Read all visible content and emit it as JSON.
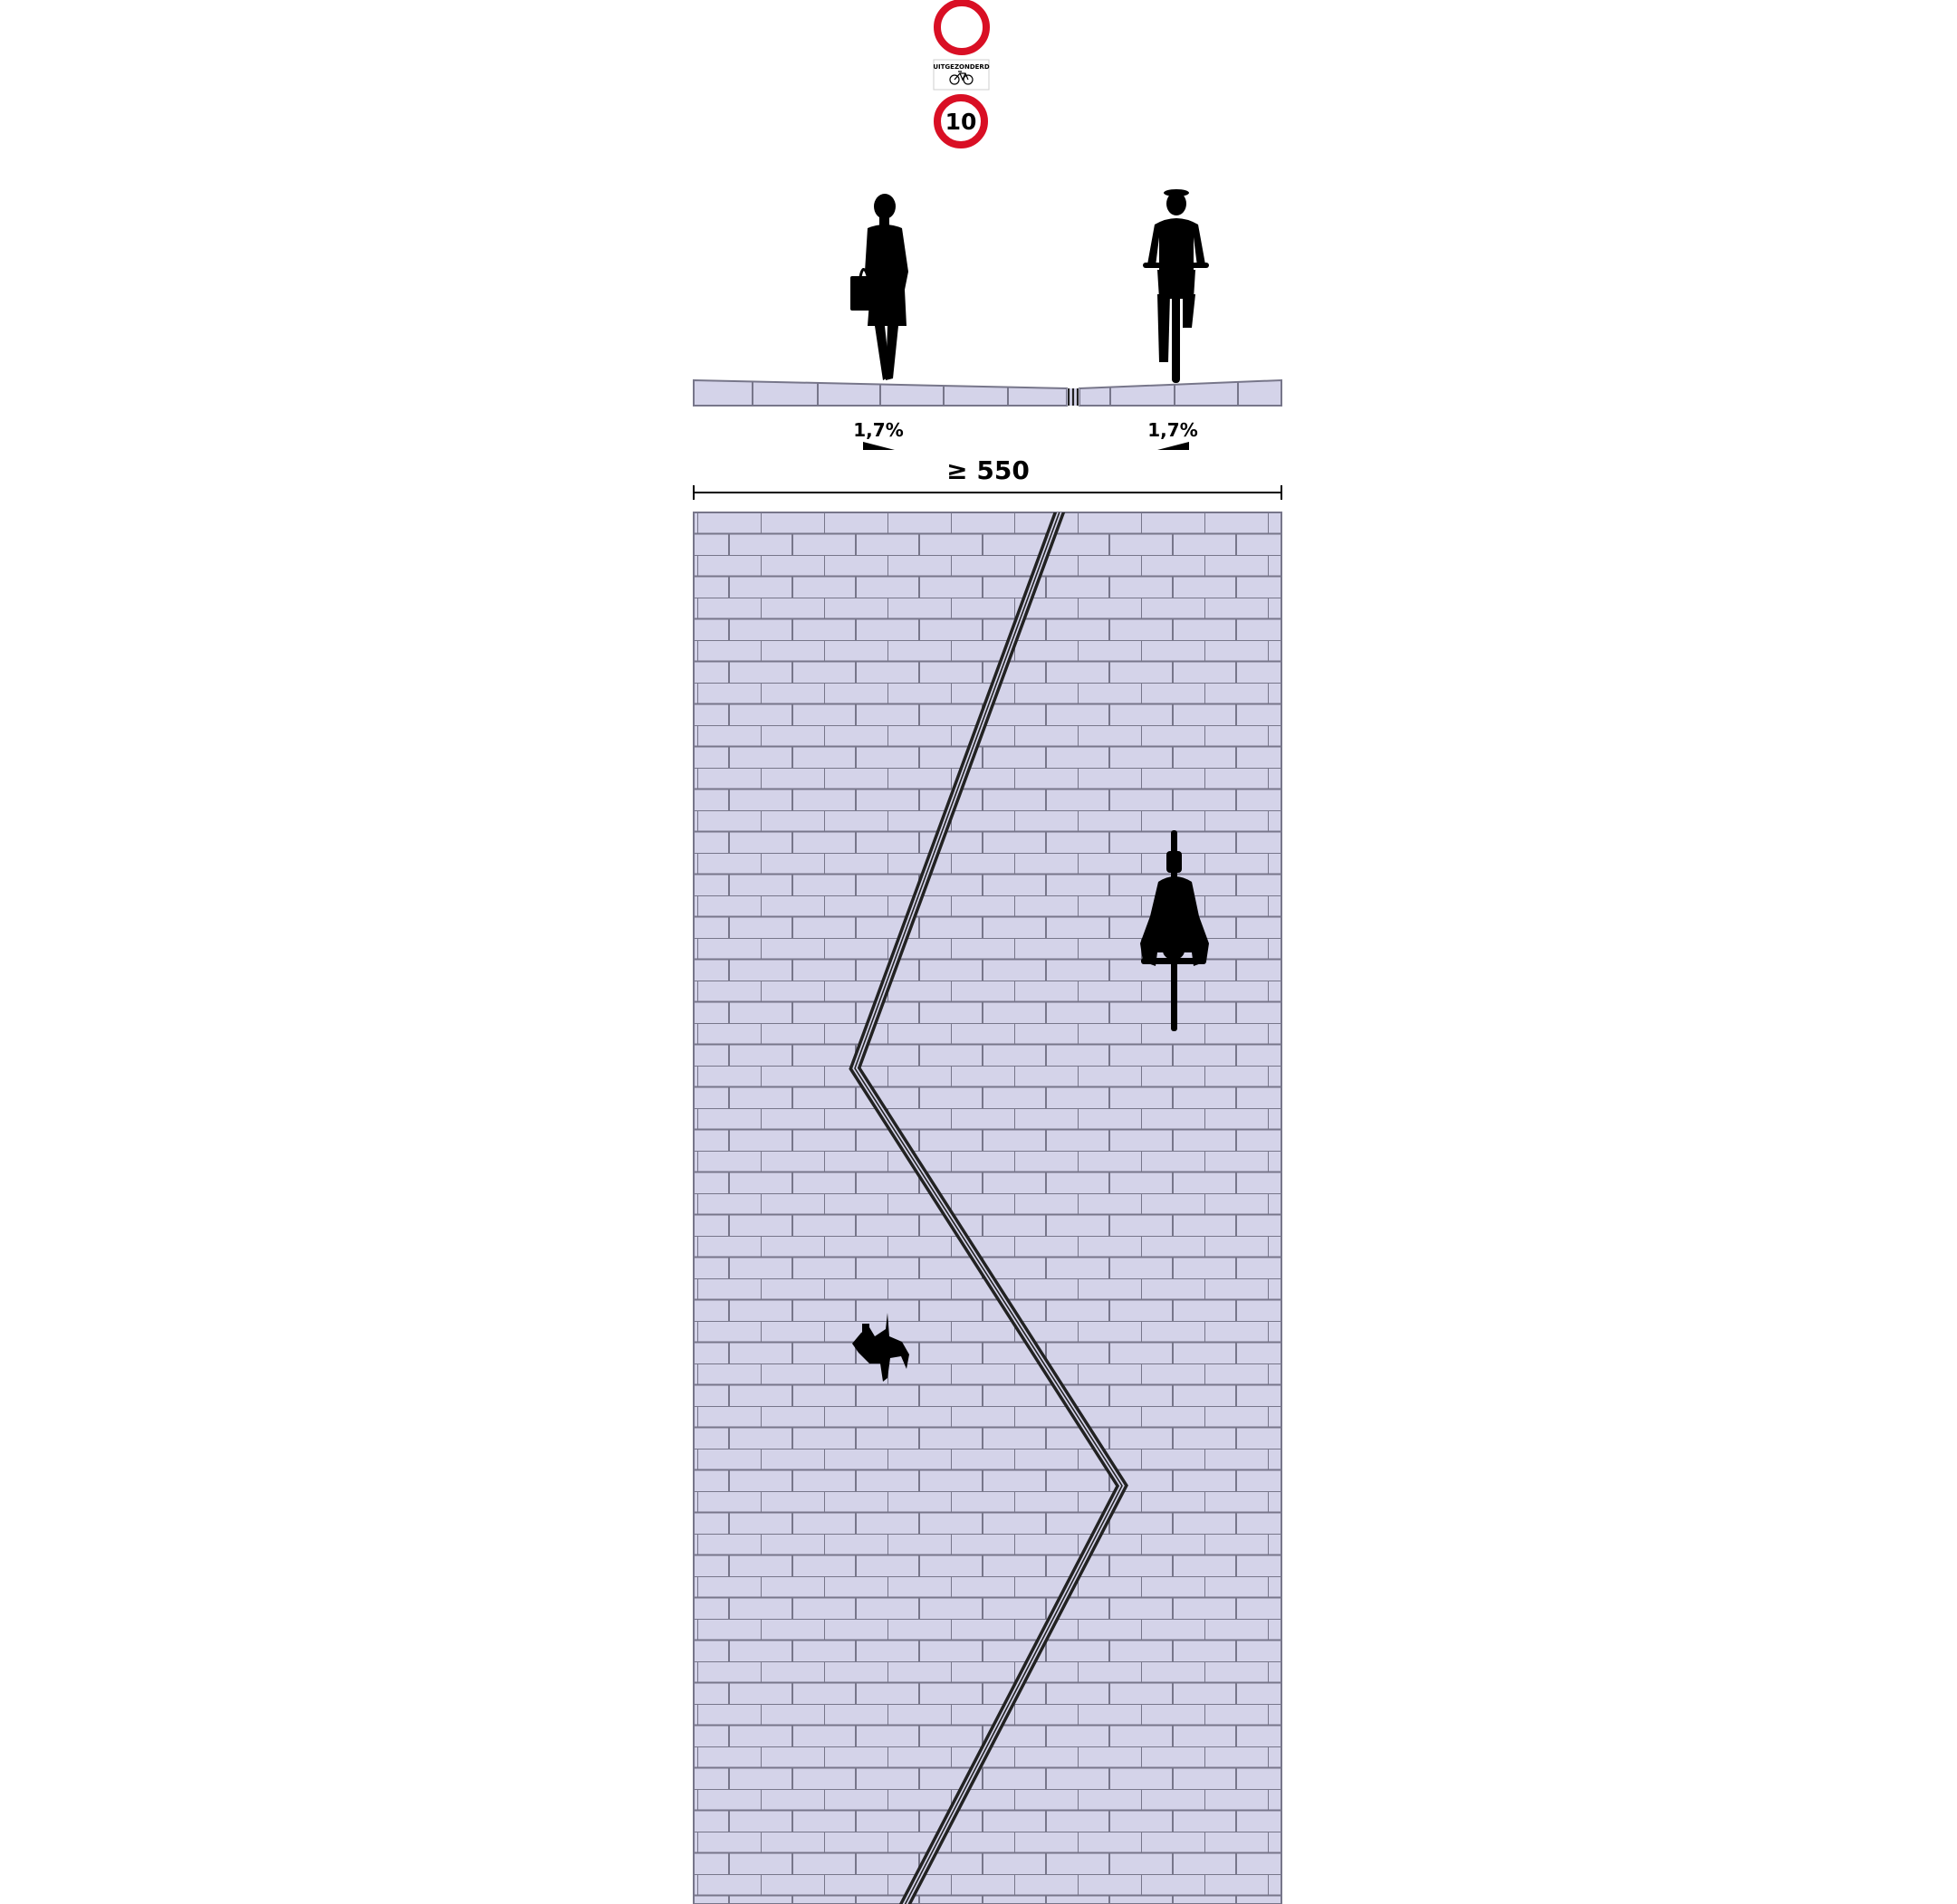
{
  "signs": {
    "sub_sign_text": "UITGEZONDERD",
    "sub_sign_icon": "bicycle-icon",
    "speed_limit": "10",
    "closed_sign_icon": "no-vehicles-sign-icon",
    "ring_color": "#d90f24"
  },
  "cross_section": {
    "left_slope": "1,7%",
    "right_slope": "1,7%",
    "width_label": "≥ 550"
  },
  "figures": {
    "pedestrian_icon": "pedestrian-with-bag-icon",
    "cyclist_icon": "cyclist-icon"
  },
  "colors": {
    "paving": "#d4d3e9",
    "joint": "#77768a",
    "marking": "#222222"
  }
}
